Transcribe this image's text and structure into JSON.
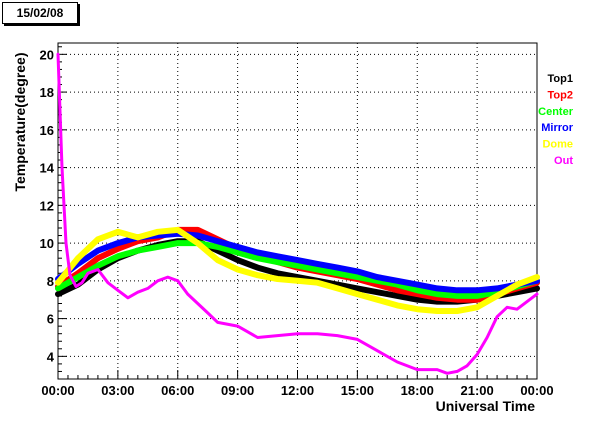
{
  "date_label": "15/02/08",
  "chart_data": {
    "type": "line",
    "title": "",
    "xlabel": "Universal Time",
    "ylabel": "Temperature(degree)",
    "xlim": [
      0,
      24
    ],
    "ylim": [
      2.8,
      20.6
    ],
    "x_ticks": [
      0,
      3,
      6,
      9,
      12,
      15,
      18,
      21,
      24
    ],
    "x_tick_labels": [
      "00:00",
      "03:00",
      "06:00",
      "09:00",
      "12:00",
      "15:00",
      "18:00",
      "21:00",
      "00:00"
    ],
    "y_ticks": [
      4,
      6,
      8,
      10,
      12,
      14,
      16,
      18,
      20
    ],
    "y_tick_labels": [
      "4",
      "6",
      "8",
      "10",
      "12",
      "14",
      "16",
      "18",
      "20"
    ],
    "grid": true,
    "legend_position": "right",
    "series": [
      {
        "name": "Top1",
        "color": "#000000",
        "x": [
          0,
          1,
          2,
          3,
          4,
          5,
          6,
          7,
          8,
          9,
          10,
          11,
          12,
          13,
          14,
          15,
          16,
          17,
          18,
          19,
          20,
          21,
          22,
          23,
          24
        ],
        "y": [
          7.3,
          7.8,
          8.6,
          9.2,
          9.6,
          9.9,
          10.1,
          10.1,
          9.6,
          9.1,
          8.7,
          8.4,
          8.2,
          8.0,
          7.8,
          7.6,
          7.4,
          7.2,
          7.0,
          6.9,
          6.9,
          7.0,
          7.2,
          7.4,
          7.6
        ]
      },
      {
        "name": "Top2",
        "color": "#ff0000",
        "x": [
          0,
          1,
          2,
          3,
          4,
          5,
          6,
          7,
          8,
          9,
          10,
          11,
          12,
          13,
          14,
          15,
          16,
          17,
          18,
          19,
          20,
          21,
          22,
          23,
          24
        ],
        "y": [
          7.7,
          8.4,
          9.2,
          9.7,
          10.1,
          10.3,
          10.7,
          10.7,
          10.2,
          9.7,
          9.3,
          9.0,
          8.7,
          8.5,
          8.3,
          8.1,
          7.8,
          7.5,
          7.3,
          7.1,
          7.0,
          7.0,
          7.3,
          7.6,
          7.9
        ]
      },
      {
        "name": "Center",
        "color": "#00ff00",
        "x": [
          0,
          1,
          2,
          3,
          4,
          5,
          6,
          7,
          8,
          9,
          10,
          11,
          12,
          13,
          14,
          15,
          16,
          17,
          18,
          19,
          20,
          21,
          22,
          23,
          24
        ],
        "y": [
          7.6,
          8.2,
          8.8,
          9.3,
          9.6,
          9.8,
          10.0,
          10.0,
          9.8,
          9.5,
          9.2,
          9.0,
          8.8,
          8.6,
          8.4,
          8.2,
          8.0,
          7.8,
          7.5,
          7.3,
          7.2,
          7.2,
          7.4,
          7.7,
          8.0
        ]
      },
      {
        "name": "Mirror",
        "color": "#0000ff",
        "x": [
          0,
          1,
          2,
          3,
          4,
          5,
          6,
          7,
          8,
          9,
          10,
          11,
          12,
          13,
          14,
          15,
          16,
          17,
          18,
          19,
          20,
          21,
          22,
          23,
          24
        ],
        "y": [
          8.1,
          8.9,
          9.6,
          10.0,
          10.3,
          10.4,
          10.5,
          10.4,
          10.1,
          9.8,
          9.5,
          9.3,
          9.1,
          8.9,
          8.7,
          8.5,
          8.2,
          8.0,
          7.8,
          7.6,
          7.5,
          7.5,
          7.6,
          7.8,
          8.0
        ]
      },
      {
        "name": "Dome",
        "color": "#ffff00",
        "x": [
          0,
          1,
          2,
          3,
          4,
          5,
          6,
          7,
          8,
          9,
          10,
          11,
          12,
          13,
          14,
          15,
          16,
          17,
          18,
          19,
          20,
          21,
          22,
          23,
          24
        ],
        "y": [
          7.9,
          9.2,
          10.2,
          10.6,
          10.3,
          10.6,
          10.7,
          10.0,
          9.1,
          8.6,
          8.3,
          8.1,
          8.0,
          7.9,
          7.6,
          7.3,
          7.0,
          6.7,
          6.5,
          6.4,
          6.4,
          6.6,
          7.2,
          7.8,
          8.2
        ]
      },
      {
        "name": "Out",
        "color": "#ff00ff",
        "x": [
          0,
          0.2,
          0.4,
          0.6,
          0.9,
          1.2,
          1.5,
          2.0,
          2.5,
          3.0,
          3.5,
          4.0,
          4.5,
          5.0,
          5.5,
          6.0,
          6.5,
          7.0,
          7.5,
          8.0,
          9.0,
          10.0,
          11.0,
          12.0,
          13.0,
          14.0,
          15.0,
          16.0,
          17.0,
          18.0,
          19.0,
          19.5,
          20.0,
          20.5,
          21.0,
          21.5,
          22.0,
          22.5,
          23.0,
          24.0
        ],
        "y": [
          20.0,
          14.0,
          10.0,
          8.3,
          7.7,
          7.9,
          8.4,
          8.6,
          7.9,
          7.5,
          7.1,
          7.4,
          7.6,
          8.0,
          8.2,
          8.0,
          7.3,
          6.8,
          6.3,
          5.8,
          5.6,
          5.0,
          5.1,
          5.2,
          5.2,
          5.1,
          4.9,
          4.3,
          3.7,
          3.3,
          3.3,
          3.1,
          3.2,
          3.5,
          4.1,
          5.0,
          6.1,
          6.6,
          6.5,
          7.3
        ]
      }
    ]
  }
}
